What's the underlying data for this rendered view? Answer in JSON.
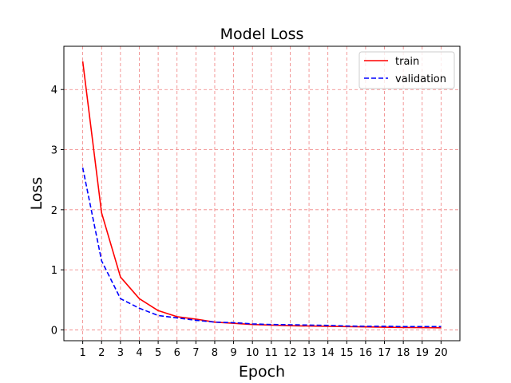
{
  "chart_data": {
    "type": "line",
    "title": "Model Loss",
    "xlabel": "Epoch",
    "ylabel": "Loss",
    "x": [
      1,
      2,
      3,
      4,
      5,
      6,
      7,
      8,
      9,
      10,
      11,
      12,
      13,
      14,
      15,
      16,
      17,
      18,
      19,
      20
    ],
    "xlim": [
      0.0,
      21.0
    ],
    "ylim": [
      -0.18,
      4.72
    ],
    "yticks": [
      0,
      1,
      2,
      3,
      4
    ],
    "grid": true,
    "grid_color": "#f08080",
    "legend_position": "top-right",
    "series": [
      {
        "name": "train",
        "color": "#ff0000",
        "dash": "solid",
        "values": [
          4.47,
          1.95,
          0.88,
          0.52,
          0.32,
          0.22,
          0.18,
          0.13,
          0.11,
          0.09,
          0.08,
          0.07,
          0.065,
          0.06,
          0.055,
          0.05,
          0.045,
          0.04,
          0.038,
          0.035
        ]
      },
      {
        "name": "validation",
        "color": "#0000ff",
        "dash": "dashed",
        "values": [
          2.7,
          1.15,
          0.52,
          0.36,
          0.24,
          0.2,
          0.16,
          0.13,
          0.12,
          0.1,
          0.09,
          0.085,
          0.08,
          0.075,
          0.065,
          0.06,
          0.06,
          0.055,
          0.055,
          0.055
        ]
      }
    ]
  }
}
